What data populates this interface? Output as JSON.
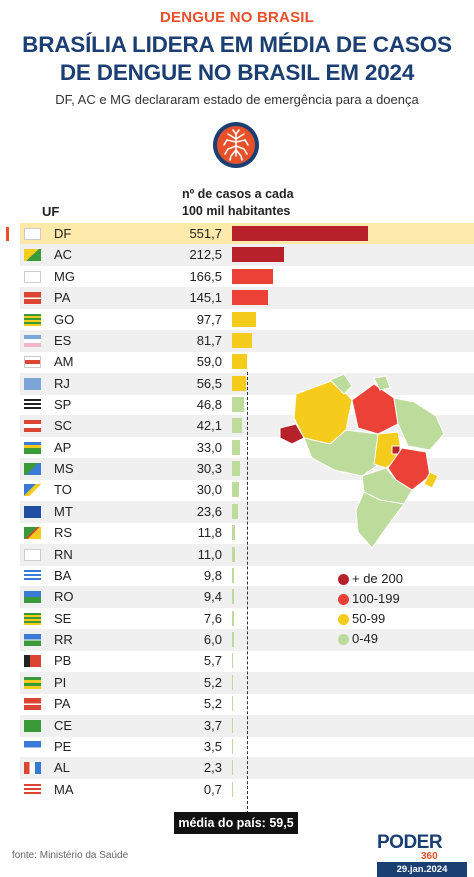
{
  "header": {
    "kicker": "DENGUE NO BRASIL",
    "headline_line1": "BRASÍLIA LIDERA EM MÉDIA DE CASOS",
    "headline_line2": "DE DENGUE NO BRASIL EM 2024",
    "subtitle": "DF, AC e MG declararam estado de emergência para a doença",
    "badge_icon": "mosquito-icon"
  },
  "table": {
    "col_uf": "UF",
    "col_cases_line1": "nº de casos a cada",
    "col_cases_line2": "100 mil habitantes"
  },
  "chart_data": {
    "type": "bar",
    "orientation": "horizontal",
    "categories": [
      "DF",
      "AC",
      "MG",
      "PA",
      "GO",
      "ES",
      "AM",
      "RJ",
      "SP",
      "SC",
      "AP",
      "MS",
      "TO",
      "MT",
      "RS",
      "RN",
      "BA",
      "RO",
      "SE",
      "RR",
      "PB",
      "PI",
      "PA",
      "CE",
      "PE",
      "AL",
      "MA"
    ],
    "values": [
      551.7,
      212.5,
      166.5,
      145.1,
      97.7,
      81.7,
      59.0,
      56.5,
      46.8,
      42.1,
      33.0,
      30.3,
      30.0,
      23.6,
      11.8,
      11.0,
      9.8,
      9.4,
      7.6,
      6.0,
      5.7,
      5.2,
      5.2,
      3.7,
      3.5,
      2.3,
      0.7
    ],
    "value_labels": [
      "551,7",
      "212,5",
      "166,5",
      "145,1",
      "97,7",
      "81,7",
      "59,0",
      "56,5",
      "46,8",
      "42,1",
      "33,0",
      "30,3",
      "30,0",
      "23,6",
      "11,8",
      "11,0",
      "9,8",
      "9,4",
      "7,6",
      "6,0",
      "5,7",
      "5,2",
      "5,2",
      "3,7",
      "3,5",
      "2,3",
      "0,7"
    ],
    "highlight_category": "DF",
    "reference_line": {
      "value": 59.5,
      "label": "média do país: 59,5"
    },
    "xlim": [
      0,
      560
    ],
    "grid": false
  },
  "colors": {
    "kicker": "#e8502a",
    "headline": "#1b3f73",
    "highlight_row": "#fde9a9",
    "zebra": "#f0f0f0",
    "bar_200_plus": "#b7222a",
    "bar_100_199": "#eb4136",
    "bar_50_99": "#f6cc1c",
    "bar_0_49": "#bddb9a"
  },
  "legend": {
    "items": [
      {
        "label": "+ de 200",
        "color": "#b7222a"
      },
      {
        "label": "100-199",
        "color": "#eb4136"
      },
      {
        "label": "50-99",
        "color": "#f6cc1c"
      },
      {
        "label": "0-49",
        "color": "#bddb9a"
      }
    ]
  },
  "footer": {
    "source": "fonte: Ministério da Saúde",
    "logo_word": "PODER",
    "logo_number": "360",
    "date": "29.jan.2024"
  }
}
